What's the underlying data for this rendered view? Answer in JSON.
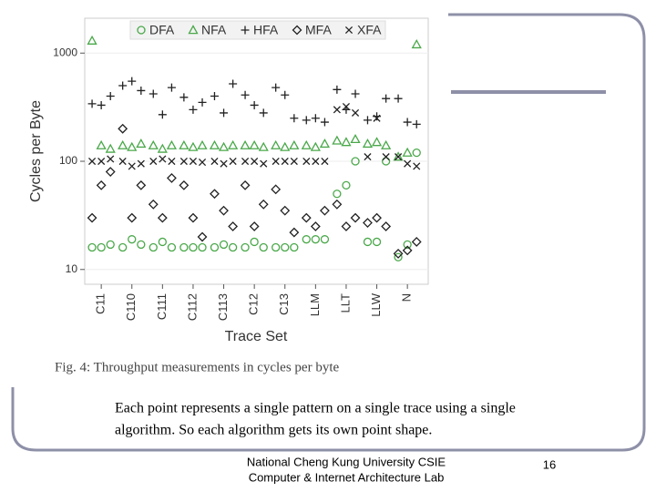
{
  "chart_data": {
    "type": "scatter",
    "ylabel": "Cycles per Byte",
    "xlabel": "Trace Set",
    "log_y": true,
    "grid": true,
    "legend": "top",
    "xlim": [
      -0.54,
      10.68
    ],
    "ylim": [
      7.3,
      2100
    ],
    "yticks": [
      10,
      100,
      1000
    ],
    "xticks": [
      {
        "value": 0,
        "label": "C11"
      },
      {
        "value": 1,
        "label": "C110"
      },
      {
        "value": 2,
        "label": "C111"
      },
      {
        "value": 3,
        "label": "C112"
      },
      {
        "value": 4,
        "label": "C113"
      },
      {
        "value": 5,
        "label": "C12"
      },
      {
        "value": 6,
        "label": "C13"
      },
      {
        "value": 7,
        "label": "LLM"
      },
      {
        "value": 8,
        "label": "LLT"
      },
      {
        "value": 9,
        "label": "LLW"
      },
      {
        "value": 10,
        "label": "N"
      }
    ],
    "series": [
      {
        "name": "DFA",
        "color": "#4aa84a",
        "marker": "circle",
        "x": [
          -0.3,
          0,
          0.3,
          0.7,
          1,
          1.3,
          1.7,
          2,
          2.3,
          2.7,
          3,
          3.3,
          3.7,
          4,
          4.3,
          4.7,
          5,
          5.3,
          5.7,
          6,
          6.3,
          6.7,
          7,
          7.3,
          7.7,
          8,
          8.3,
          8.7,
          9,
          9.3,
          9.7,
          10,
          10.3
        ],
        "values": [
          16,
          16,
          17,
          16,
          19,
          17,
          16,
          18,
          16,
          16,
          16,
          16,
          16,
          17,
          16,
          16,
          18,
          16,
          16,
          16,
          16,
          19,
          19,
          19,
          50,
          60,
          100,
          18,
          18,
          100,
          13,
          17,
          120
        ]
      },
      {
        "name": "NFA",
        "color": "#4aa84a",
        "marker": "triangle",
        "x": [
          -0.3,
          0,
          0.3,
          0.7,
          1,
          1.3,
          1.7,
          2,
          2.3,
          2.7,
          3,
          3.3,
          3.7,
          4,
          4.3,
          4.7,
          5,
          5.3,
          5.7,
          6,
          6.3,
          6.7,
          7,
          7.3,
          7.7,
          8,
          8.3,
          8.7,
          9,
          9.3,
          9.7,
          10,
          10.3
        ],
        "values": [
          1300,
          140,
          130,
          140,
          135,
          145,
          140,
          130,
          140,
          140,
          135,
          140,
          140,
          135,
          140,
          140,
          140,
          135,
          140,
          135,
          140,
          140,
          135,
          145,
          155,
          150,
          160,
          145,
          150,
          140,
          110,
          120,
          1200
        ]
      },
      {
        "name": "HFA",
        "color": "#222222",
        "marker": "plus",
        "x": [
          -0.3,
          0,
          0.3,
          0.7,
          1,
          1.3,
          1.7,
          2,
          2.3,
          2.7,
          3,
          3.3,
          3.7,
          4,
          4.3,
          4.7,
          5,
          5.3,
          5.7,
          6,
          6.3,
          6.7,
          7,
          7.3,
          7.7,
          8,
          8.3,
          8.7,
          9,
          9.3,
          9.7,
          10,
          10.3
        ],
        "values": [
          340,
          330,
          400,
          500,
          550,
          450,
          420,
          270,
          480,
          390,
          300,
          350,
          400,
          280,
          520,
          410,
          330,
          280,
          480,
          410,
          250,
          240,
          250,
          230,
          460,
          300,
          420,
          240,
          260,
          380,
          380,
          230,
          220
        ]
      },
      {
        "name": "MFA",
        "color": "#222222",
        "marker": "diamond",
        "x": [
          -0.3,
          0,
          0.3,
          0.7,
          1,
          1.3,
          1.7,
          2,
          2.3,
          2.7,
          3,
          3.3,
          3.7,
          4,
          4.3,
          4.7,
          5,
          5.3,
          5.7,
          6,
          6.3,
          6.7,
          7,
          7.3,
          7.7,
          8,
          8.3,
          8.7,
          9,
          9.3,
          9.7,
          10,
          10.3
        ],
        "values": [
          30,
          60,
          80,
          200,
          30,
          60,
          40,
          30,
          70,
          60,
          30,
          20,
          50,
          35,
          25,
          60,
          25,
          40,
          55,
          35,
          22,
          30,
          25,
          35,
          40,
          25,
          30,
          27,
          30,
          25,
          14,
          15,
          18
        ]
      },
      {
        "name": "XFA",
        "color": "#222222",
        "marker": "x",
        "x": [
          -0.3,
          0,
          0.3,
          0.7,
          1,
          1.3,
          1.7,
          2,
          2.3,
          2.7,
          3,
          3.3,
          3.7,
          4,
          4.3,
          4.7,
          5,
          5.3,
          5.7,
          6,
          6.3,
          6.7,
          7,
          7.3,
          7.7,
          8,
          8.3,
          8.7,
          9,
          9.3,
          9.7,
          10,
          10.3
        ],
        "values": [
          100,
          100,
          105,
          100,
          90,
          95,
          100,
          105,
          100,
          100,
          100,
          98,
          100,
          95,
          100,
          100,
          100,
          95,
          100,
          100,
          100,
          100,
          100,
          100,
          300,
          320,
          280,
          110,
          250,
          110,
          110,
          95,
          90
        ]
      }
    ]
  },
  "figure_caption": "Fig. 4: Throughput measurements in cycles per byte",
  "body": [
    "Each point represents a single pattern on a single trace using a single",
    "algorithm. So each algorithm gets its own point shape."
  ],
  "footer": [
    "National Cheng Kung University CSIE",
    "Computer & Internet Architecture Lab"
  ],
  "page_number": 16
}
